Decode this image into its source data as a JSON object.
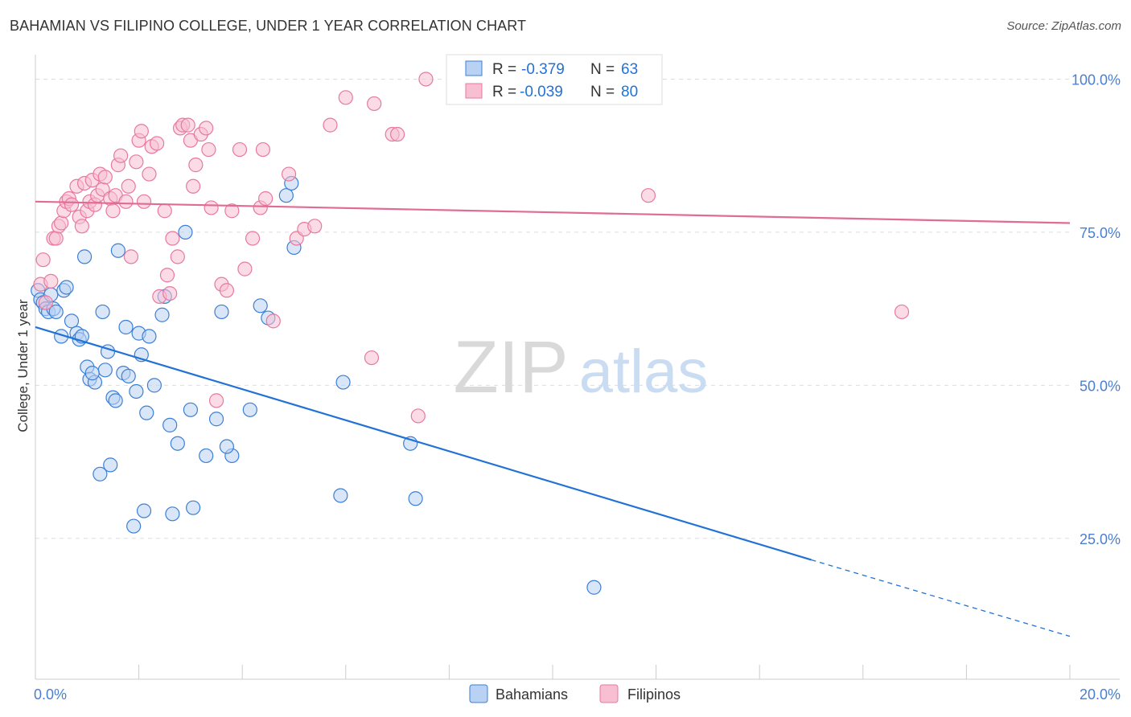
{
  "header": {
    "title": "BAHAMIAN VS FILIPINO COLLEGE, UNDER 1 YEAR CORRELATION CHART",
    "source": "Source: ZipAtlas.com"
  },
  "watermark": {
    "zip": "ZIP",
    "atlas": "atlas"
  },
  "colors": {
    "blue": "#3c7fd6",
    "blue_fill": "#b9d1f2",
    "blue_line": "#2272d6",
    "pink": "#e8799e",
    "pink_fill": "#f8bfd2",
    "pink_line": "#e06b94",
    "grid": "#dddddd",
    "axis_text": "#4a7fd0"
  },
  "legend_stats": [
    {
      "r_label": "R =",
      "r_value": "-0.379",
      "n_label": "N =",
      "n_value": "63"
    },
    {
      "r_label": "R =",
      "r_value": "-0.039",
      "n_label": "N =",
      "n_value": "80"
    }
  ],
  "chart_data": {
    "type": "scatter",
    "title": "BAHAMIAN VS FILIPINO COLLEGE, UNDER 1 YEAR CORRELATION CHART",
    "xlabel": "",
    "ylabel": "College, Under 1 year",
    "xlim": [
      0,
      20
    ],
    "ylim": [
      2,
      104
    ],
    "x_tick_labels": [
      {
        "value": 0,
        "label": "0.0%"
      },
      {
        "value": 20,
        "label": "20.0%"
      }
    ],
    "y_tick_labels": [
      {
        "value": 25,
        "label": "25.0%"
      },
      {
        "value": 50,
        "label": "50.0%"
      },
      {
        "value": 75,
        "label": "75.0%"
      },
      {
        "value": 100,
        "label": "100.0%"
      }
    ],
    "x_minor_ticks": [
      0,
      2,
      4,
      6,
      8,
      10,
      12,
      14,
      16,
      18,
      20
    ],
    "legend": [
      "Bahamians",
      "Filipinos"
    ],
    "series": [
      {
        "name": "Bahamians",
        "r": -0.379,
        "n": 63,
        "trend": {
          "x0": 0,
          "y0": 59.5,
          "x1": 15,
          "y1": 21.5,
          "dashed_to_x": 20,
          "dashed_to_y": 9
        },
        "points": [
          [
            0.05,
            65.5
          ],
          [
            0.1,
            64.0
          ],
          [
            0.15,
            63.5
          ],
          [
            0.2,
            62.5
          ],
          [
            0.25,
            62.0
          ],
          [
            0.3,
            64.8
          ],
          [
            0.35,
            62.5
          ],
          [
            0.5,
            58.0
          ],
          [
            0.55,
            65.5
          ],
          [
            0.6,
            66.0
          ],
          [
            0.7,
            60.5
          ],
          [
            0.8,
            58.5
          ],
          [
            0.85,
            57.5
          ],
          [
            0.9,
            58.0
          ],
          [
            0.95,
            71.0
          ],
          [
            1.0,
            53.0
          ],
          [
            1.05,
            51.0
          ],
          [
            1.15,
            50.5
          ],
          [
            1.25,
            35.5
          ],
          [
            1.3,
            62.0
          ],
          [
            1.35,
            52.5
          ],
          [
            1.4,
            55.5
          ],
          [
            1.45,
            37.0
          ],
          [
            1.5,
            48.0
          ],
          [
            1.55,
            47.5
          ],
          [
            1.6,
            72.0
          ],
          [
            1.7,
            52.0
          ],
          [
            1.75,
            59.5
          ],
          [
            1.8,
            51.5
          ],
          [
            1.9,
            27.0
          ],
          [
            1.95,
            49.0
          ],
          [
            2.0,
            58.5
          ],
          [
            2.05,
            55.0
          ],
          [
            2.1,
            29.5
          ],
          [
            2.15,
            45.5
          ],
          [
            2.3,
            50.0
          ],
          [
            2.45,
            61.5
          ],
          [
            2.5,
            64.5
          ],
          [
            2.6,
            43.5
          ],
          [
            2.65,
            29.0
          ],
          [
            2.75,
            40.5
          ],
          [
            2.9,
            75.0
          ],
          [
            3.0,
            46.0
          ],
          [
            3.05,
            30.0
          ],
          [
            3.3,
            38.5
          ],
          [
            3.6,
            62.0
          ],
          [
            3.8,
            38.5
          ],
          [
            3.7,
            40.0
          ],
          [
            4.15,
            46.0
          ],
          [
            4.35,
            63.0
          ],
          [
            4.5,
            61.0
          ],
          [
            4.85,
            81.0
          ],
          [
            4.95,
            83.0
          ],
          [
            5.0,
            72.5
          ],
          [
            5.95,
            50.5
          ],
          [
            5.9,
            32.0
          ],
          [
            7.25,
            40.5
          ],
          [
            7.35,
            31.5
          ],
          [
            10.8,
            17.0
          ],
          [
            0.4,
            62.0
          ],
          [
            1.1,
            52.0
          ],
          [
            2.2,
            58.0
          ],
          [
            3.5,
            44.5
          ]
        ]
      },
      {
        "name": "Filipinos",
        "r": -0.039,
        "n": 80,
        "trend": {
          "x0": 0,
          "y0": 80.0,
          "x1": 20,
          "y1": 76.5
        },
        "points": [
          [
            0.1,
            66.5
          ],
          [
            0.15,
            70.5
          ],
          [
            0.2,
            63.5
          ],
          [
            0.3,
            67.0
          ],
          [
            0.35,
            74.0
          ],
          [
            0.4,
            74.0
          ],
          [
            0.45,
            76.0
          ],
          [
            0.5,
            76.5
          ],
          [
            0.55,
            78.5
          ],
          [
            0.6,
            80.0
          ],
          [
            0.65,
            80.5
          ],
          [
            0.7,
            79.5
          ],
          [
            0.8,
            82.5
          ],
          [
            0.85,
            77.5
          ],
          [
            0.9,
            76.0
          ],
          [
            0.95,
            83.0
          ],
          [
            1.0,
            78.5
          ],
          [
            1.05,
            80.0
          ],
          [
            1.1,
            83.5
          ],
          [
            1.15,
            79.5
          ],
          [
            1.2,
            81.0
          ],
          [
            1.25,
            84.5
          ],
          [
            1.3,
            82.0
          ],
          [
            1.35,
            84.0
          ],
          [
            1.45,
            80.5
          ],
          [
            1.5,
            78.5
          ],
          [
            1.55,
            81.0
          ],
          [
            1.6,
            86.0
          ],
          [
            1.65,
            87.5
          ],
          [
            1.75,
            80.0
          ],
          [
            1.8,
            82.5
          ],
          [
            1.85,
            71.0
          ],
          [
            1.95,
            86.5
          ],
          [
            2.0,
            90.0
          ],
          [
            2.05,
            91.5
          ],
          [
            2.1,
            80.0
          ],
          [
            2.2,
            84.5
          ],
          [
            2.25,
            89.0
          ],
          [
            2.35,
            89.5
          ],
          [
            2.4,
            64.5
          ],
          [
            2.5,
            78.5
          ],
          [
            2.55,
            68.0
          ],
          [
            2.6,
            65.0
          ],
          [
            2.65,
            74.0
          ],
          [
            2.75,
            71.0
          ],
          [
            2.8,
            92.0
          ],
          [
            2.85,
            92.5
          ],
          [
            2.95,
            92.5
          ],
          [
            3.0,
            90.0
          ],
          [
            3.05,
            82.5
          ],
          [
            3.1,
            86.0
          ],
          [
            3.2,
            91.0
          ],
          [
            3.3,
            92.0
          ],
          [
            3.35,
            88.5
          ],
          [
            3.4,
            79.0
          ],
          [
            3.5,
            47.5
          ],
          [
            3.6,
            66.5
          ],
          [
            3.7,
            65.5
          ],
          [
            3.8,
            78.5
          ],
          [
            3.95,
            88.5
          ],
          [
            4.05,
            69.0
          ],
          [
            4.2,
            74.0
          ],
          [
            4.35,
            79.0
          ],
          [
            4.4,
            88.5
          ],
          [
            4.45,
            80.5
          ],
          [
            4.6,
            60.5
          ],
          [
            4.9,
            84.5
          ],
          [
            5.05,
            74.0
          ],
          [
            5.2,
            75.5
          ],
          [
            5.4,
            76.0
          ],
          [
            5.7,
            92.5
          ],
          [
            6.0,
            97.0
          ],
          [
            6.5,
            54.5
          ],
          [
            6.55,
            96.0
          ],
          [
            6.9,
            91.0
          ],
          [
            7.0,
            91.0
          ],
          [
            7.4,
            45.0
          ],
          [
            7.55,
            100.0
          ],
          [
            11.85,
            81.0
          ],
          [
            16.75,
            62.0
          ]
        ]
      }
    ]
  }
}
